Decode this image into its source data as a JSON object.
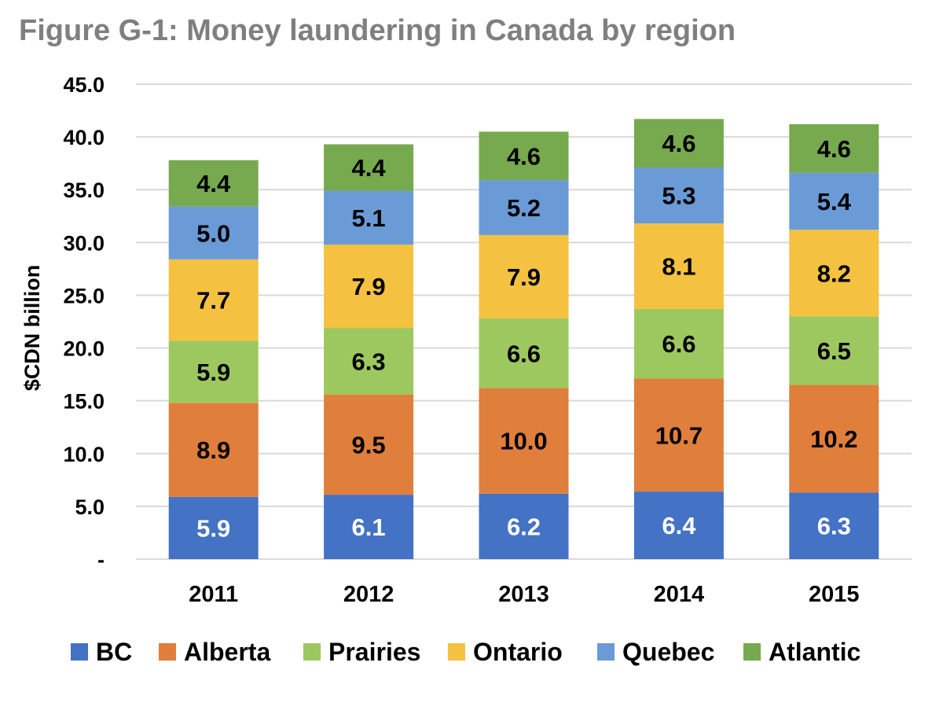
{
  "title": "Figure G-1: Money laundering in Canada by region",
  "chart_data": {
    "type": "bar",
    "stacked": true,
    "title": "Figure G-1: Money laundering in Canada by region",
    "xlabel": "",
    "ylabel": "$CDN billion",
    "ylim": [
      0,
      45
    ],
    "yticks": [
      "-",
      "5.0",
      "10.0",
      "15.0",
      "20.0",
      "25.0",
      "30.0",
      "35.0",
      "40.0",
      "45.0"
    ],
    "grid": true,
    "legend_position": "bottom",
    "categories": [
      "2011",
      "2012",
      "2013",
      "2014",
      "2015"
    ],
    "series": [
      {
        "name": "BC",
        "color": "#4472C4",
        "label_color": "#ffffff",
        "values": [
          5.9,
          6.1,
          6.2,
          6.4,
          6.3
        ],
        "labels": [
          "5.9",
          "6.1",
          "6.2",
          "6.4",
          "6.3"
        ]
      },
      {
        "name": "Alberta",
        "color": "#E07E3C",
        "label_color": "#000000",
        "values": [
          8.9,
          9.5,
          10.0,
          10.7,
          10.2
        ],
        "labels": [
          "8.9",
          "9.5",
          "10.0",
          "10.7",
          "10.2"
        ]
      },
      {
        "name": "Prairies",
        "color": "#9DC85F",
        "label_color": "#000000",
        "values": [
          5.9,
          6.3,
          6.6,
          6.6,
          6.5
        ],
        "labels": [
          "5.9",
          "6.3",
          "6.6",
          "6.6",
          "6.5"
        ]
      },
      {
        "name": "Ontario",
        "color": "#F4C141",
        "label_color": "#000000",
        "values": [
          7.7,
          7.9,
          7.9,
          8.1,
          8.2
        ],
        "labels": [
          "7.7",
          "7.9",
          "7.9",
          "8.1",
          "8.2"
        ]
      },
      {
        "name": "Quebec",
        "color": "#6A9BD6",
        "label_color": "#000000",
        "values": [
          5.0,
          5.1,
          5.2,
          5.3,
          5.4
        ],
        "labels": [
          "5.0",
          "5.1",
          "5.2",
          "5.3",
          "5.4"
        ]
      },
      {
        "name": "Atlantic",
        "color": "#77A94F",
        "label_color": "#000000",
        "values": [
          4.4,
          4.4,
          4.6,
          4.6,
          4.6
        ],
        "labels": [
          "4.4",
          "4.4",
          "4.6",
          "4.6",
          "4.6"
        ]
      }
    ]
  }
}
